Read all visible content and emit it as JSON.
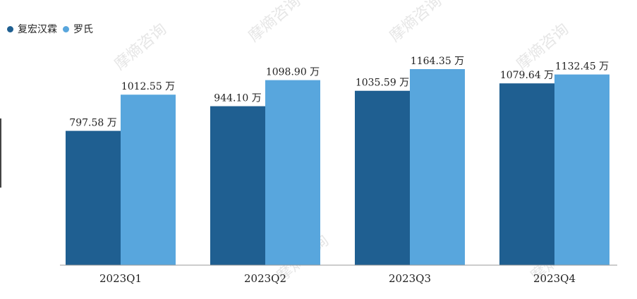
{
  "chart_data": {
    "type": "bar",
    "categories": [
      "2023Q1",
      "2023Q2",
      "2023Q3",
      "2023Q4"
    ],
    "series": [
      {
        "name": "复宏汉霖",
        "values": [
          797.58,
          944.1,
          1035.59,
          1079.64
        ],
        "color": "#1f5f91"
      },
      {
        "name": "罗氏",
        "values": [
          1012.55,
          1098.9,
          1164.35,
          1132.45
        ],
        "color": "#58a6dd"
      }
    ],
    "value_labels": [
      [
        "797.58 万",
        "944.10 万",
        "1035.59 万",
        "1079.64 万"
      ],
      [
        "1012.55 万",
        "1098.90 万",
        "1164.35 万",
        "1132.45 万"
      ]
    ],
    "title": "",
    "xlabel": "",
    "ylabel": "",
    "ylim": [
      0,
      1164.35
    ],
    "grid": false,
    "legend_position": "top-left"
  },
  "watermark": "摩熵咨询"
}
